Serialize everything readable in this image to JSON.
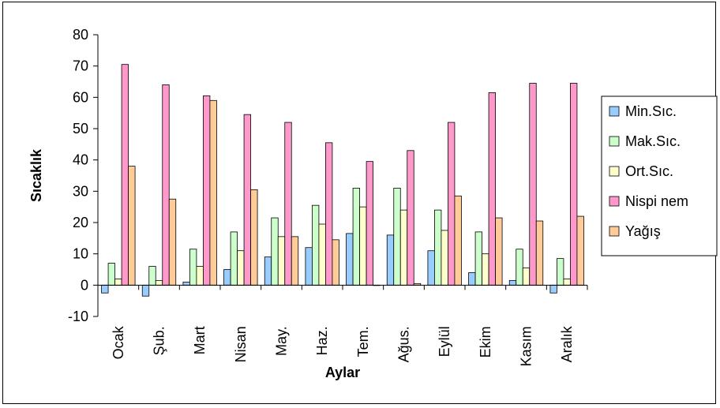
{
  "chart_data": {
    "type": "bar",
    "categories": [
      "Ocak",
      "Şub.",
      "Mart",
      "Nisan",
      "May.",
      "Haz.",
      "Tem.",
      "Ağus.",
      "Eylül",
      "Ekim",
      "Kasım",
      "Aralık"
    ],
    "series": [
      {
        "name": "Min.Sıc.",
        "color": "#99ccff",
        "values": [
          -2.5,
          -3.5,
          1,
          5,
          9,
          12,
          16.5,
          16,
          11,
          4,
          1.5,
          -2.5
        ]
      },
      {
        "name": "Mak.Sıc.",
        "color": "#ccffcc",
        "values": [
          7,
          6,
          11.5,
          17,
          21.5,
          25.5,
          31,
          31,
          24,
          17,
          11.5,
          8.5
        ]
      },
      {
        "name": "Ort.Sıc.",
        "color": "#ffffcc",
        "values": [
          2,
          1.5,
          6,
          11,
          15.5,
          19.5,
          25,
          24,
          17.5,
          10,
          5.5,
          2
        ]
      },
      {
        "name": "Nispi nem",
        "color": "#ff99cc",
        "values": [
          70.5,
          64,
          60.5,
          54.5,
          52,
          45.5,
          39.5,
          43,
          52,
          61.5,
          64.5,
          64.5
        ]
      },
      {
        "name": "Yağış",
        "color": "#ffcc99",
        "values": [
          38,
          27.5,
          59,
          30.5,
          15.5,
          14.5,
          0,
          0.5,
          28.5,
          21.5,
          20.5,
          22
        ]
      }
    ],
    "xlabel": "Aylar",
    "ylabel": "Sıcaklık",
    "ylim": [
      -10,
      80
    ],
    "yticks": [
      -10,
      0,
      10,
      20,
      30,
      40,
      50,
      60,
      70,
      80
    ],
    "grid": false,
    "legend_position": "right"
  }
}
